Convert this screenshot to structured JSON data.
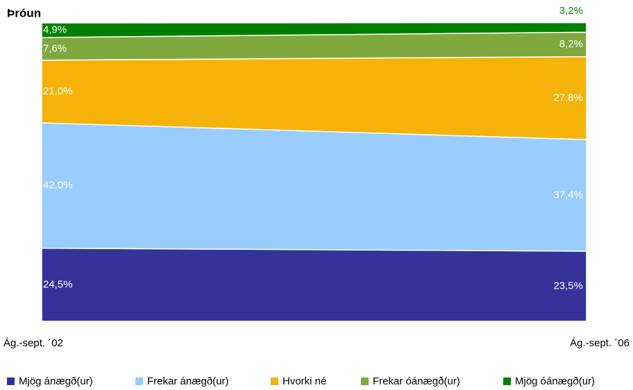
{
  "chart_data": {
    "type": "area",
    "stacked": true,
    "title": "Þróun",
    "categories": [
      "Ág.-sept. ´02",
      "Ág.-sept. ´06"
    ],
    "ylim": [
      0,
      100
    ],
    "legend": "bottom",
    "series": [
      {
        "name": "Mjög ánægð(ur)",
        "color": "#333399",
        "values": [
          24.5,
          23.5
        ],
        "value_labels": [
          "24,5%",
          "23,5%"
        ]
      },
      {
        "name": "Frekar ánægð(ur)",
        "color": "#99ccff",
        "values": [
          42.0,
          37.4
        ],
        "value_labels": [
          "42,0%",
          "37,4%"
        ]
      },
      {
        "name": "Hvorki né",
        "color": "#f5b30a",
        "values": [
          21.0,
          27.8
        ],
        "value_labels": [
          "21,0%",
          "27,8%"
        ]
      },
      {
        "name": "Frekar óánægð(ur)",
        "color": "#7fa83f",
        "values": [
          7.6,
          8.2
        ],
        "value_labels": [
          "7,6%",
          "8,2%"
        ]
      },
      {
        "name": "Mjög óánægð(ur)",
        "color": "#008000",
        "values": [
          4.9,
          3.2
        ],
        "value_labels": [
          "4,9%",
          "3,2%"
        ]
      }
    ]
  }
}
